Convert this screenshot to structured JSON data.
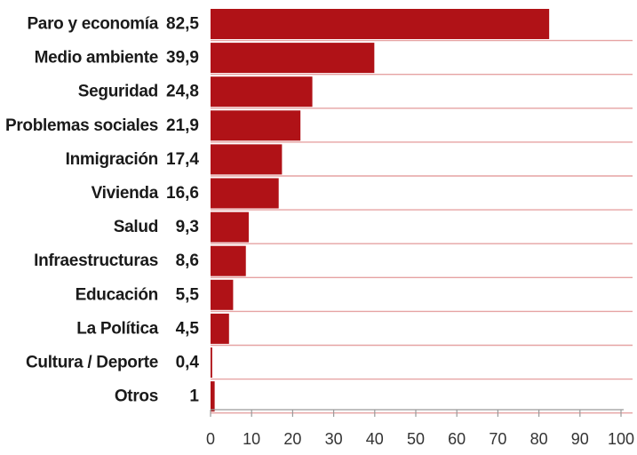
{
  "chart_data": {
    "type": "bar",
    "orientation": "horizontal",
    "categories": [
      "Paro y economía",
      "Medio ambiente",
      "Seguridad",
      "Problemas sociales",
      "Inmigración",
      "Vivienda",
      "Salud",
      "Infraestructuras",
      "Educación",
      "La Política",
      "Cultura / Deporte",
      "Otros"
    ],
    "values": [
      82.5,
      39.9,
      24.8,
      21.9,
      17.4,
      16.6,
      9.3,
      8.6,
      5.5,
      4.5,
      0.4,
      1
    ],
    "value_labels": [
      "82,5",
      "39,9",
      "24,8",
      "21,9",
      "17,4",
      "16,6",
      "9,3",
      "8,6",
      "5,5",
      "4,5",
      "0,4",
      "1"
    ],
    "xlim": [
      0,
      100
    ],
    "x_ticks": [
      0,
      10,
      20,
      30,
      40,
      50,
      60,
      70,
      80,
      90,
      100
    ],
    "title": "",
    "xlabel": "",
    "ylabel": "",
    "grid": true,
    "colors": {
      "bar": "#b01217",
      "row_line": "#e6a3a3",
      "axis": "#9a9a9a"
    }
  }
}
